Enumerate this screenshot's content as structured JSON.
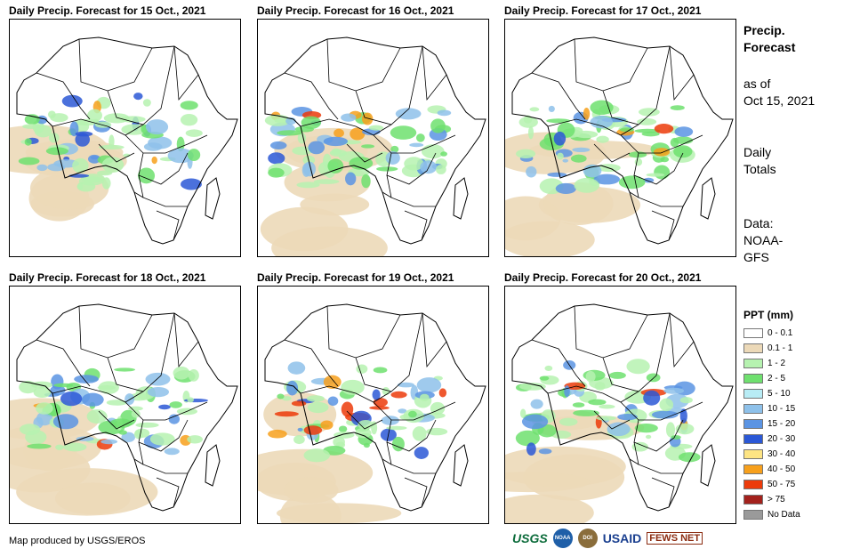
{
  "panels": [
    {
      "title": "Daily Precip. Forecast for 15 Oct., 2021"
    },
    {
      "title": "Daily Precip. Forecast for 16 Oct., 2021"
    },
    {
      "title": "Daily Precip. Forecast for 17 Oct., 2021"
    },
    {
      "title": "Daily Precip. Forecast for 18 Oct., 2021"
    },
    {
      "title": "Daily Precip. Forecast for 19 Oct., 2021"
    },
    {
      "title": "Daily Precip. Forecast for 20 Oct., 2021"
    }
  ],
  "side": {
    "title_line1": "Precip.",
    "title_line2": "Forecast",
    "asof_line1": "as of",
    "asof_line2": "Oct 15, 2021",
    "totals_line1": "Daily",
    "totals_line2": "Totals",
    "data_line1": "Data:",
    "data_line2": "NOAA-",
    "data_line3": "GFS"
  },
  "legend": {
    "title": "PPT (mm)",
    "items": [
      {
        "label": "0 - 0.1",
        "color": "#ffffff"
      },
      {
        "label": "0.1 - 1",
        "color": "#ecd9b8"
      },
      {
        "label": "1 - 2",
        "color": "#b6f2b0"
      },
      {
        "label": "2 - 5",
        "color": "#6fe06f"
      },
      {
        "label": "5 - 10",
        "color": "#b8ecf5"
      },
      {
        "label": "10 - 15",
        "color": "#8ec1ea"
      },
      {
        "label": "15 - 20",
        "color": "#5b94e3"
      },
      {
        "label": "20 - 30",
        "color": "#2b58d6"
      },
      {
        "label": "30 - 40",
        "color": "#fde483"
      },
      {
        "label": "40 - 50",
        "color": "#f7a01c"
      },
      {
        "label": "50 - 75",
        "color": "#ec3b0b"
      },
      {
        "label": "> 75",
        "color": "#a3211c"
      },
      {
        "label": "No Data",
        "color": "#9a9a9a"
      }
    ]
  },
  "footer": {
    "credit": "Map produced by USGS/EROS",
    "logos": {
      "usgs": "USGS",
      "noaa": "NOAA",
      "dept": "DOI",
      "usaid": "USAID",
      "fews": "FEWS NET"
    }
  }
}
